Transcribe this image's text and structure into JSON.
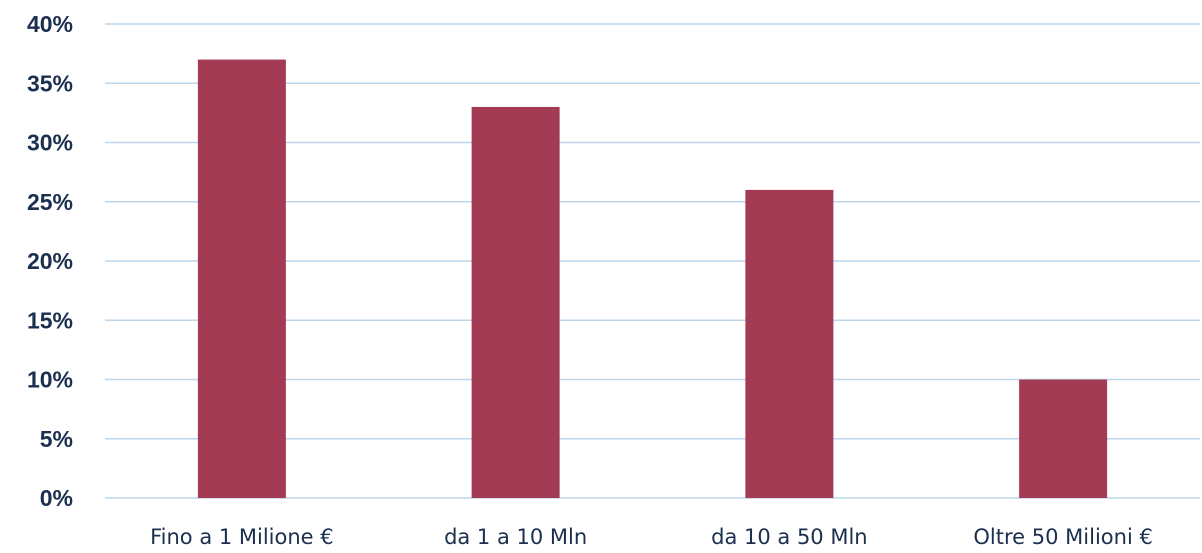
{
  "chart_data": {
    "type": "bar",
    "categories": [
      "Fino a 1 Milione €",
      "da 1 a 10 Mln",
      "da 10 a 50 Mln",
      "Oltre 50 Milioni €"
    ],
    "values": [
      37,
      33,
      26,
      10
    ],
    "yticks": [
      "0%",
      "5%",
      "10%",
      "15%",
      "20%",
      "25%",
      "30%",
      "35%",
      "40%"
    ],
    "ylim": [
      0,
      40
    ],
    "grid": true,
    "bar_color": "#a33b55",
    "grid_color": "#bcd6ec",
    "text_color": "#1b2f4f"
  }
}
